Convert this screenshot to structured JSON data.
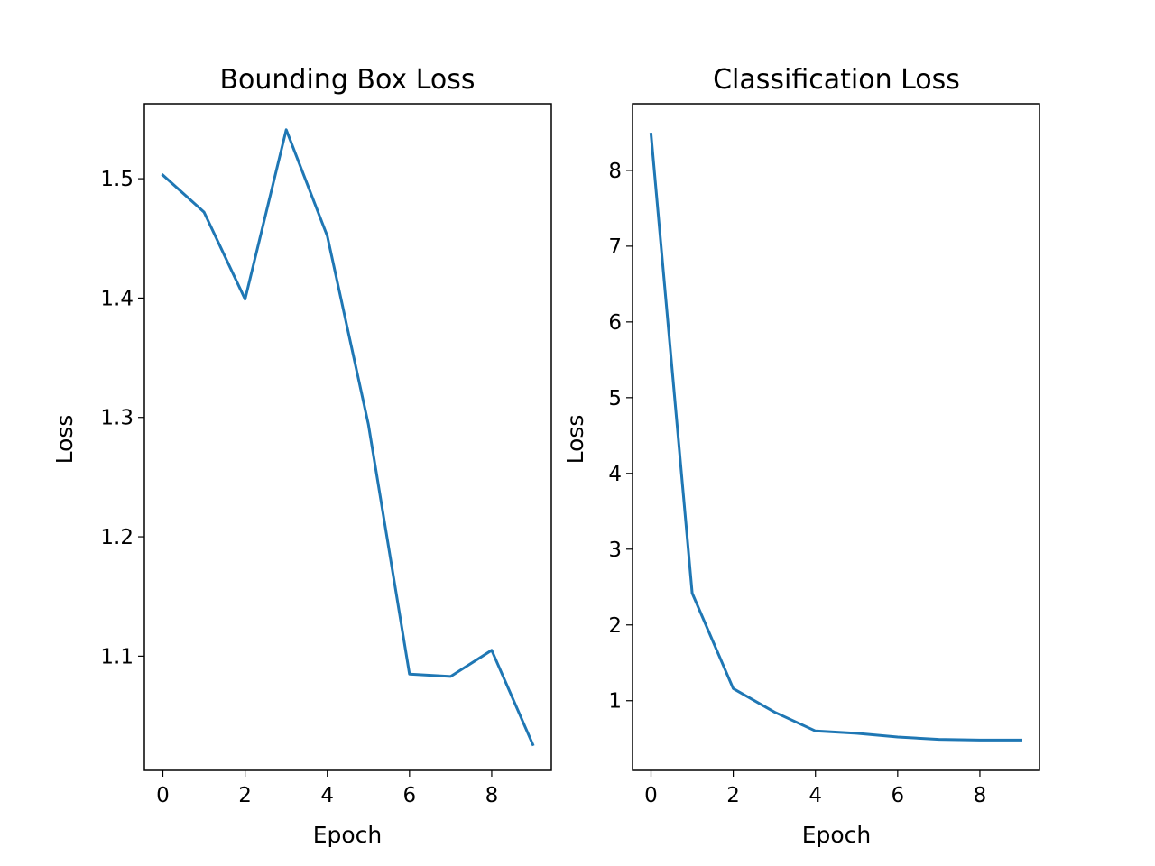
{
  "chart_data": [
    {
      "type": "line",
      "title": "Bounding Box Loss",
      "xlabel": "Epoch",
      "ylabel": "Loss",
      "grid": false,
      "x": [
        0,
        1,
        2,
        3,
        4,
        5,
        6,
        7,
        8,
        9
      ],
      "series": [
        {
          "color": "#1f77b4",
          "values": [
            1.503,
            1.472,
            1.399,
            1.541,
            1.452,
            1.294,
            1.085,
            1.083,
            1.105,
            1.026
          ]
        }
      ],
      "xlim": [
        -0.45,
        9.45
      ],
      "ylim": [
        1.0043,
        1.5628
      ],
      "xticks": [
        0,
        2,
        4,
        6,
        8
      ],
      "xtick_labels": [
        "0",
        "2",
        "4",
        "6",
        "8"
      ],
      "yticks": [
        1.1,
        1.2,
        1.3,
        1.4,
        1.5
      ],
      "ytick_labels": [
        "1.1",
        "1.2",
        "1.3",
        "1.4",
        "1.5"
      ]
    },
    {
      "type": "line",
      "title": "Classification Loss",
      "xlabel": "Epoch",
      "ylabel": "Loss",
      "grid": false,
      "x": [
        0,
        1,
        2,
        3,
        4,
        5,
        6,
        7,
        8,
        9
      ],
      "series": [
        {
          "color": "#1f77b4",
          "values": [
            8.48,
            2.42,
            1.16,
            0.85,
            0.6,
            0.57,
            0.52,
            0.49,
            0.48,
            0.48
          ]
        }
      ],
      "xlim": [
        -0.45,
        9.45
      ],
      "ylim": [
        0.08,
        8.88
      ],
      "xticks": [
        0,
        2,
        4,
        6,
        8
      ],
      "xtick_labels": [
        "0",
        "2",
        "4",
        "6",
        "8"
      ],
      "yticks": [
        1,
        2,
        3,
        4,
        5,
        6,
        7,
        8
      ],
      "ytick_labels": [
        "1",
        "2",
        "3",
        "4",
        "5",
        "6",
        "7",
        "8"
      ]
    }
  ]
}
